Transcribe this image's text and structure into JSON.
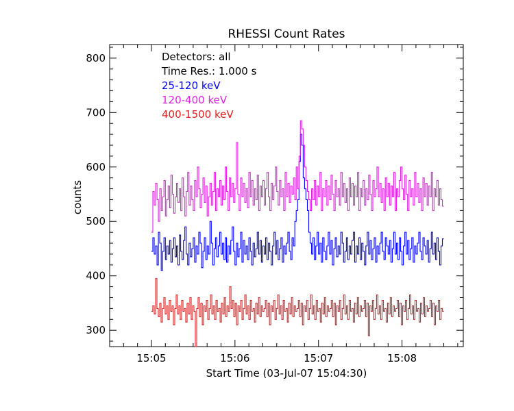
{
  "chart_data": {
    "type": "line",
    "step": true,
    "title": "RHESSI Count Rates",
    "xlabel": "Start Time (03-Jul-07 15:04:30)",
    "ylabel": "counts",
    "xlim": [
      "15:04:30",
      "15:08:44"
    ],
    "ylim": [
      270,
      825
    ],
    "x_ticks": [
      "15:05",
      "15:06",
      "15:07",
      "15:08"
    ],
    "y_ticks": [
      300,
      400,
      500,
      600,
      700,
      800
    ],
    "x_start": "15:05:00",
    "x_end": "15:08:30",
    "sample_interval_s": 1.0,
    "legend_location": "top-left",
    "legend": [
      "Detectors: all",
      "Time Res.: 1.000 s"
    ],
    "series": [
      {
        "name": "25-120 keV",
        "color": "#0000ff",
        "values": [
          445,
          470,
          440,
          455,
          420,
          480,
          460,
          410,
          445,
          470,
          430,
          455,
          440,
          465,
          425,
          450,
          470,
          435,
          455,
          420,
          475,
          445,
          430,
          465,
          490,
          440,
          420,
          460,
          435,
          450,
          470,
          425,
          455,
          440,
          480,
          460,
          415,
          445,
          470,
          430,
          455,
          440,
          500,
          460,
          420,
          450,
          470,
          435,
          455,
          480,
          440,
          460,
          430,
          470,
          425,
          455,
          440,
          465,
          490,
          445,
          420,
          460,
          435,
          450,
          480,
          425,
          465,
          440,
          455,
          430,
          470,
          445,
          420,
          460,
          435,
          450,
          480,
          440,
          465,
          425,
          455,
          440,
          470,
          430,
          460,
          445,
          420,
          455,
          480,
          440,
          465,
          430,
          450,
          470,
          425,
          455,
          440,
          460,
          480,
          445,
          430,
          470,
          455,
          500,
          520,
          540,
          610,
          660,
          640,
          580,
          560,
          540,
          520,
          480,
          460,
          440,
          470,
          430,
          455,
          480,
          440,
          460,
          425,
          470,
          445,
          430,
          455,
          480,
          440,
          465,
          420,
          450,
          470,
          435,
          455,
          440,
          480,
          460,
          425,
          445,
          470,
          430,
          455,
          440,
          465,
          480,
          425,
          455,
          440,
          470,
          430,
          460,
          445,
          420,
          455,
          480,
          440,
          465,
          430,
          450,
          470,
          425,
          455,
          440,
          460,
          480,
          445,
          430,
          470,
          455,
          440,
          465,
          425,
          450,
          480,
          440,
          460,
          430,
          470,
          445,
          420,
          455,
          480,
          440,
          465,
          430,
          450,
          470,
          425,
          455,
          440,
          460,
          480,
          445,
          430,
          470,
          455,
          440,
          465,
          425,
          450,
          480,
          440,
          460,
          430,
          470,
          445,
          420,
          455,
          468
        ]
      },
      {
        "name": "120-400 keV",
        "color": "#e020e0",
        "values": [
          480,
          555,
          530,
          570,
          540,
          500,
          560,
          520,
          545,
          575,
          510,
          540,
          565,
          525,
          585,
          550,
          515,
          545,
          570,
          535,
          560,
          520,
          580,
          545,
          510,
          555,
          590,
          530,
          565,
          540,
          520,
          575,
          545,
          600,
          560,
          525,
          550,
          580,
          535,
          565,
          510,
          545,
          570,
          530,
          555,
          590,
          520,
          560,
          545,
          575,
          530,
          565,
          540,
          600,
          555,
          520,
          580,
          545,
          570,
          535,
          560,
          645,
          550,
          520,
          580,
          545,
          570,
          535,
          560,
          525,
          590,
          545,
          575,
          530,
          560,
          540,
          585,
          520,
          565,
          545,
          575,
          530,
          560,
          590,
          545,
          520,
          570,
          540,
          565,
          600,
          555,
          530,
          575,
          545,
          560,
          520,
          590,
          545,
          570,
          535,
          565,
          550,
          580,
          540,
          600,
          560,
          620,
          685,
          670,
          640,
          600,
          575,
          555,
          540,
          520,
          560,
          540,
          575,
          530,
          565,
          545,
          590,
          520,
          560,
          545,
          575,
          530,
          565,
          540,
          585,
          550,
          520,
          575,
          545,
          560,
          530,
          590,
          545,
          570,
          535,
          560,
          520,
          580,
          545,
          570,
          530,
          565,
          545,
          590,
          520,
          560,
          545,
          575,
          530,
          560,
          540,
          585,
          550,
          520,
          575,
          545,
          560,
          600,
          545,
          570,
          535,
          560,
          520,
          580,
          545,
          570,
          530,
          565,
          545,
          590,
          520,
          560,
          545,
          575,
          600,
          560,
          540,
          585,
          550,
          520,
          575,
          545,
          560,
          530,
          590,
          545,
          570,
          535,
          560,
          520,
          580,
          545,
          570,
          530,
          565,
          545,
          590,
          520,
          560,
          545,
          575,
          530,
          560,
          540,
          528
        ]
      },
      {
        "name": "400-1500 keV",
        "color": "#e02020",
        "values": [
          335,
          345,
          330,
          395,
          340,
          325,
          350,
          315,
          340,
          360,
          330,
          345,
          320,
          355,
          335,
          345,
          310,
          340,
          365,
          330,
          345,
          320,
          355,
          335,
          340,
          315,
          350,
          330,
          360,
          320,
          345,
          335,
          270,
          340,
          360,
          325,
          350,
          310,
          345,
          335,
          355,
          320,
          340,
          365,
          330,
          345,
          320,
          355,
          335,
          340,
          315,
          350,
          330,
          360,
          325,
          345,
          335,
          380,
          340,
          355,
          325,
          350,
          310,
          345,
          335,
          355,
          320,
          340,
          365,
          330,
          345,
          320,
          355,
          335,
          340,
          315,
          350,
          330,
          360,
          325,
          345,
          335,
          340,
          355,
          325,
          350,
          310,
          345,
          335,
          355,
          320,
          340,
          365,
          330,
          345,
          320,
          355,
          335,
          340,
          315,
          350,
          330,
          360,
          325,
          345,
          335,
          340,
          355,
          325,
          350,
          310,
          345,
          335,
          355,
          320,
          340,
          365,
          330,
          345,
          320,
          355,
          335,
          340,
          315,
          350,
          330,
          360,
          325,
          345,
          335,
          340,
          355,
          325,
          350,
          310,
          345,
          335,
          355,
          320,
          340,
          365,
          330,
          345,
          320,
          355,
          335,
          340,
          315,
          350,
          330,
          360,
          325,
          345,
          335,
          340,
          355,
          325,
          350,
          290,
          345,
          335,
          355,
          320,
          340,
          365,
          330,
          345,
          320,
          355,
          335,
          340,
          315,
          350,
          330,
          360,
          325,
          345,
          335,
          340,
          355,
          325,
          350,
          310,
          345,
          335,
          355,
          320,
          340,
          365,
          330,
          345,
          320,
          355,
          335,
          340,
          315,
          350,
          330,
          360,
          325,
          345,
          335,
          340,
          355,
          325,
          350,
          310,
          345,
          335,
          355,
          320,
          340,
          335
        ]
      }
    ]
  }
}
